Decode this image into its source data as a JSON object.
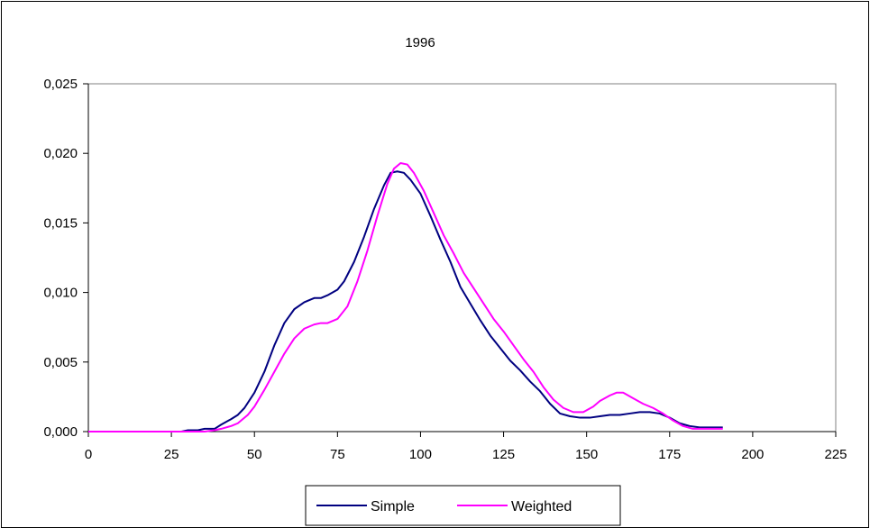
{
  "chart_data": {
    "type": "line",
    "title": "1996",
    "xlabel": "",
    "ylabel": "",
    "xlim": [
      0,
      225
    ],
    "ylim": [
      0,
      0.025
    ],
    "x_ticks": [
      0,
      25,
      50,
      75,
      100,
      125,
      150,
      175,
      200,
      225
    ],
    "y_ticks": [
      0,
      0.005,
      0.01,
      0.015,
      0.02,
      0.025
    ],
    "x_tick_labels": [
      "0",
      "25",
      "50",
      "75",
      "100",
      "125",
      "150",
      "175",
      "200",
      "225"
    ],
    "y_tick_labels": [
      "0,000",
      "0,005",
      "0,010",
      "0,015",
      "0,020",
      "0,025"
    ],
    "grid": false,
    "legend_position": "bottom",
    "series": [
      {
        "name": "Simple",
        "color": "#000080",
        "points": [
          [
            0,
            0.0
          ],
          [
            28,
            0.0
          ],
          [
            30,
            0.0001
          ],
          [
            33,
            0.0001
          ],
          [
            35,
            0.0002
          ],
          [
            38,
            0.0002
          ],
          [
            40,
            0.0005
          ],
          [
            43,
            0.0009
          ],
          [
            45,
            0.0012
          ],
          [
            47,
            0.0017
          ],
          [
            50,
            0.0028
          ],
          [
            53,
            0.0043
          ],
          [
            56,
            0.0062
          ],
          [
            59,
            0.0078
          ],
          [
            62,
            0.0088
          ],
          [
            65,
            0.0093
          ],
          [
            68,
            0.0096
          ],
          [
            70,
            0.0096
          ],
          [
            72,
            0.0098
          ],
          [
            75,
            0.0102
          ],
          [
            77,
            0.0108
          ],
          [
            80,
            0.0122
          ],
          [
            83,
            0.014
          ],
          [
            86,
            0.016
          ],
          [
            89,
            0.0177
          ],
          [
            91,
            0.0186
          ],
          [
            93,
            0.0187
          ],
          [
            95,
            0.0186
          ],
          [
            97,
            0.0181
          ],
          [
            100,
            0.0171
          ],
          [
            103,
            0.0155
          ],
          [
            106,
            0.0138
          ],
          [
            109,
            0.0122
          ],
          [
            112,
            0.0104
          ],
          [
            115,
            0.0092
          ],
          [
            118,
            0.008
          ],
          [
            121,
            0.0069
          ],
          [
            124,
            0.006
          ],
          [
            127,
            0.0051
          ],
          [
            130,
            0.0044
          ],
          [
            133,
            0.0036
          ],
          [
            136,
            0.0029
          ],
          [
            139,
            0.002
          ],
          [
            142,
            0.0013
          ],
          [
            145,
            0.0011
          ],
          [
            148,
            0.001
          ],
          [
            151,
            0.001
          ],
          [
            154,
            0.0011
          ],
          [
            157,
            0.0012
          ],
          [
            160,
            0.0012
          ],
          [
            163,
            0.0013
          ],
          [
            166,
            0.0014
          ],
          [
            169,
            0.0014
          ],
          [
            172,
            0.0013
          ],
          [
            175,
            0.001
          ],
          [
            178,
            0.0006
          ],
          [
            181,
            0.0004
          ],
          [
            184,
            0.0003
          ],
          [
            187,
            0.0003
          ],
          [
            191,
            0.0003
          ]
        ]
      },
      {
        "name": "Weighted",
        "color": "#FF00FF",
        "points": [
          [
            0,
            0.0
          ],
          [
            30,
            0.0
          ],
          [
            35,
            0.0
          ],
          [
            38,
            0.0001
          ],
          [
            40,
            0.0002
          ],
          [
            43,
            0.0004
          ],
          [
            45,
            0.0006
          ],
          [
            48,
            0.0012
          ],
          [
            50,
            0.0018
          ],
          [
            53,
            0.003
          ],
          [
            56,
            0.0043
          ],
          [
            59,
            0.0056
          ],
          [
            62,
            0.0067
          ],
          [
            65,
            0.0074
          ],
          [
            68,
            0.0077
          ],
          [
            70,
            0.0078
          ],
          [
            72,
            0.0078
          ],
          [
            75,
            0.0081
          ],
          [
            78,
            0.009
          ],
          [
            81,
            0.0108
          ],
          [
            84,
            0.013
          ],
          [
            87,
            0.0155
          ],
          [
            90,
            0.0178
          ],
          [
            92,
            0.0189
          ],
          [
            94,
            0.0193
          ],
          [
            96,
            0.0192
          ],
          [
            98,
            0.0186
          ],
          [
            101,
            0.0173
          ],
          [
            104,
            0.0157
          ],
          [
            107,
            0.0141
          ],
          [
            110,
            0.0128
          ],
          [
            113,
            0.0114
          ],
          [
            116,
            0.0103
          ],
          [
            119,
            0.0092
          ],
          [
            122,
            0.0081
          ],
          [
            125,
            0.0072
          ],
          [
            128,
            0.0062
          ],
          [
            131,
            0.0052
          ],
          [
            134,
            0.0043
          ],
          [
            137,
            0.0032
          ],
          [
            140,
            0.0023
          ],
          [
            143,
            0.0017
          ],
          [
            146,
            0.0014
          ],
          [
            149,
            0.0014
          ],
          [
            152,
            0.0018
          ],
          [
            154,
            0.0022
          ],
          [
            157,
            0.0026
          ],
          [
            159,
            0.0028
          ],
          [
            161,
            0.0028
          ],
          [
            164,
            0.0024
          ],
          [
            167,
            0.002
          ],
          [
            170,
            0.0017
          ],
          [
            173,
            0.0013
          ],
          [
            176,
            0.0008
          ],
          [
            179,
            0.0004
          ],
          [
            182,
            0.0002
          ],
          [
            185,
            0.0002
          ],
          [
            191,
            0.0002
          ]
        ]
      }
    ]
  }
}
